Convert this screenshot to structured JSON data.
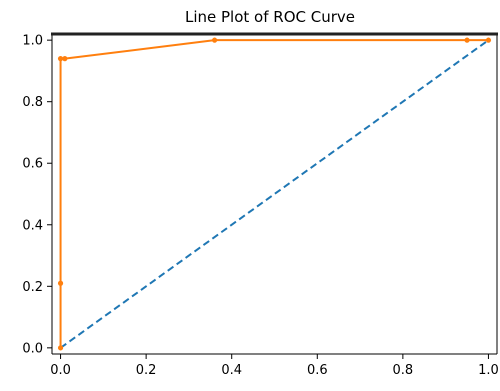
{
  "chart_data": {
    "type": "line",
    "title": "Line Plot of ROC Curve",
    "xlabel": "",
    "ylabel": "",
    "xlim": [
      -0.02,
      1.02
    ],
    "ylim": [
      -0.02,
      1.02
    ],
    "x_ticks": [
      0.0,
      0.2,
      0.4,
      0.6,
      0.8,
      1.0
    ],
    "x_tick_labels": [
      "0.0",
      "0.2",
      "0.4",
      "0.6",
      "0.8",
      "1.0"
    ],
    "y_ticks": [
      0.0,
      0.2,
      0.4,
      0.6,
      0.8,
      1.0
    ],
    "y_tick_labels": [
      "0.0",
      "0.2",
      "0.4",
      "0.6",
      "0.8",
      "1.0"
    ],
    "grid": false,
    "legend": "none",
    "series": [
      {
        "style": "dashed",
        "color": "#1f77b4",
        "x": [
          0.0,
          1.0
        ],
        "y": [
          0.0,
          1.0
        ],
        "markers": false
      },
      {
        "style": "solid",
        "color": "#ff7f0e",
        "x": [
          0.0,
          0.0,
          0.0,
          0.01,
          0.36,
          0.95,
          1.0
        ],
        "y": [
          0.0,
          0.21,
          0.94,
          0.94,
          1.0,
          1.0,
          1.0
        ],
        "markers": true
      }
    ]
  }
}
